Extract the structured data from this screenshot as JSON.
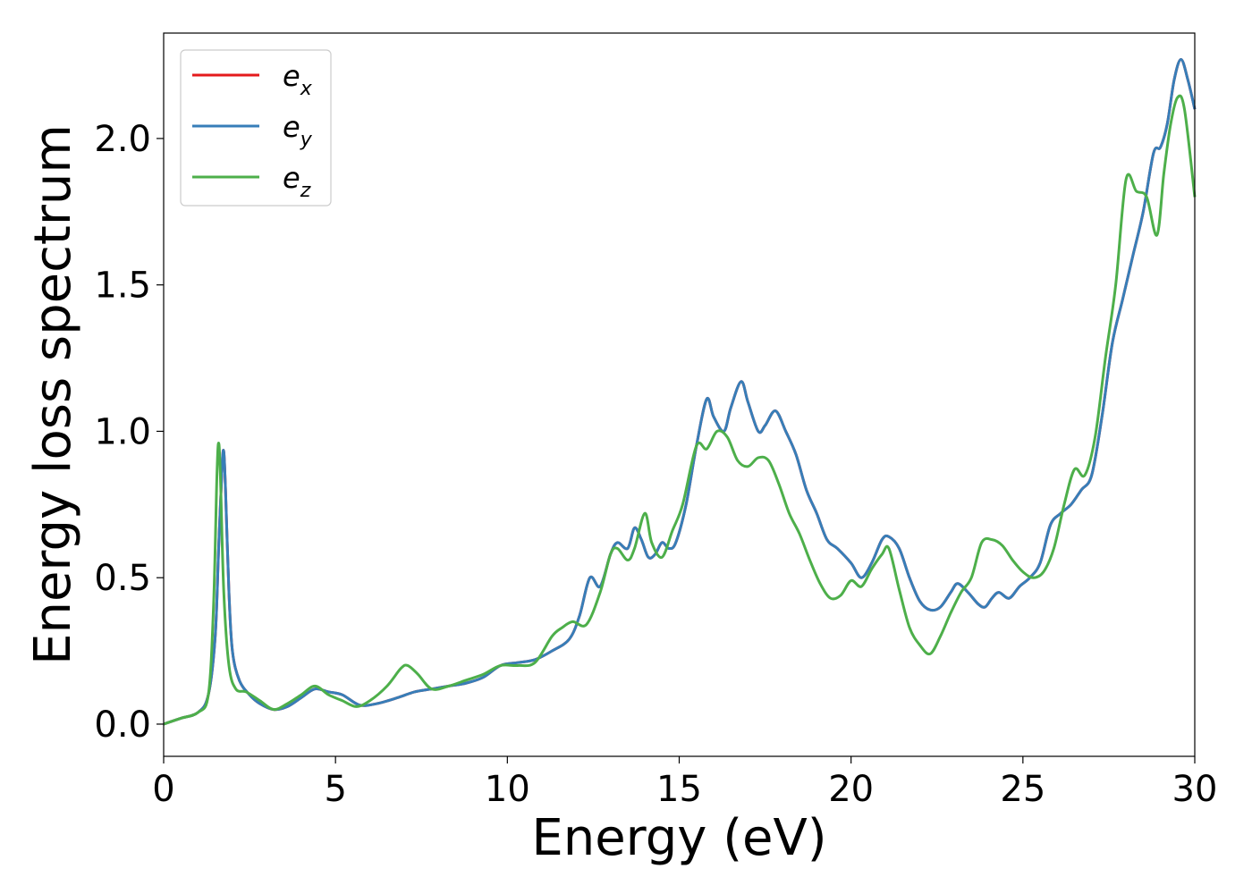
{
  "chart_data": {
    "type": "line",
    "xlabel": "Energy (eV)",
    "ylabel": "Energy loss spectrum",
    "xlim": [
      0,
      30
    ],
    "ylim": [
      -0.11,
      2.36
    ],
    "xticks": [
      "0",
      "5",
      "10",
      "15",
      "20",
      "25",
      "30"
    ],
    "yticks": [
      "0.0",
      "0.5",
      "1.0",
      "1.5",
      "2.0"
    ],
    "grid": false,
    "legend_position": "top-left",
    "series": [
      {
        "name": "e_x",
        "label_base": "e",
        "label_sub": "x",
        "color": "#e41a1c",
        "x": [
          0,
          0.5,
          1.0,
          1.3,
          1.5,
          1.6,
          1.7,
          1.75,
          1.8,
          1.9,
          2.0,
          2.2,
          2.5,
          2.8,
          3.2,
          3.6,
          4.0,
          4.4,
          4.8,
          5.2,
          5.7,
          6.2,
          6.8,
          7.3,
          7.8,
          8.3,
          8.8,
          9.3,
          9.8,
          10.3,
          10.8,
          11.3,
          11.8,
          12.1,
          12.4,
          12.7,
          13.0,
          13.2,
          13.5,
          13.7,
          13.9,
          14.1,
          14.3,
          14.5,
          14.7,
          14.9,
          15.2,
          15.5,
          15.8,
          16.0,
          16.3,
          16.5,
          16.8,
          17.0,
          17.3,
          17.5,
          17.8,
          18.1,
          18.4,
          18.7,
          19.0,
          19.3,
          19.6,
          20.0,
          20.3,
          20.6,
          20.9,
          21.1,
          21.4,
          21.7,
          22.0,
          22.3,
          22.6,
          22.9,
          23.1,
          23.4,
          23.7,
          23.9,
          24.1,
          24.3,
          24.6,
          24.9,
          25.2,
          25.5,
          25.8,
          26.1,
          26.4,
          26.7,
          27.0,
          27.3,
          27.6,
          27.9,
          28.2,
          28.5,
          28.8,
          29.0,
          29.2,
          29.4,
          29.6,
          29.8,
          30.0
        ],
        "y": [
          0.0,
          0.02,
          0.04,
          0.1,
          0.3,
          0.6,
          0.88,
          0.93,
          0.8,
          0.45,
          0.25,
          0.15,
          0.1,
          0.07,
          0.05,
          0.06,
          0.09,
          0.12,
          0.11,
          0.1,
          0.065,
          0.07,
          0.09,
          0.11,
          0.12,
          0.13,
          0.14,
          0.16,
          0.2,
          0.21,
          0.22,
          0.25,
          0.29,
          0.37,
          0.5,
          0.47,
          0.58,
          0.62,
          0.6,
          0.67,
          0.63,
          0.57,
          0.58,
          0.62,
          0.6,
          0.62,
          0.75,
          0.95,
          1.11,
          1.05,
          1.0,
          1.08,
          1.17,
          1.1,
          1.0,
          1.02,
          1.07,
          1.0,
          0.92,
          0.8,
          0.72,
          0.63,
          0.6,
          0.55,
          0.5,
          0.55,
          0.63,
          0.64,
          0.6,
          0.5,
          0.42,
          0.39,
          0.4,
          0.45,
          0.48,
          0.45,
          0.41,
          0.4,
          0.43,
          0.45,
          0.43,
          0.47,
          0.5,
          0.55,
          0.68,
          0.72,
          0.75,
          0.8,
          0.85,
          1.05,
          1.3,
          1.45,
          1.6,
          1.75,
          1.95,
          1.97,
          2.05,
          2.2,
          2.27,
          2.2,
          2.1
        ]
      },
      {
        "name": "e_y",
        "label_base": "e",
        "label_sub": "y",
        "color": "#377eb8",
        "x": [
          0,
          0.5,
          1.0,
          1.3,
          1.5,
          1.6,
          1.7,
          1.75,
          1.8,
          1.9,
          2.0,
          2.2,
          2.5,
          2.8,
          3.2,
          3.6,
          4.0,
          4.4,
          4.8,
          5.2,
          5.7,
          6.2,
          6.8,
          7.3,
          7.8,
          8.3,
          8.8,
          9.3,
          9.8,
          10.3,
          10.8,
          11.3,
          11.8,
          12.1,
          12.4,
          12.7,
          13.0,
          13.2,
          13.5,
          13.7,
          13.9,
          14.1,
          14.3,
          14.5,
          14.7,
          14.9,
          15.2,
          15.5,
          15.8,
          16.0,
          16.3,
          16.5,
          16.8,
          17.0,
          17.3,
          17.5,
          17.8,
          18.1,
          18.4,
          18.7,
          19.0,
          19.3,
          19.6,
          20.0,
          20.3,
          20.6,
          20.9,
          21.1,
          21.4,
          21.7,
          22.0,
          22.3,
          22.6,
          22.9,
          23.1,
          23.4,
          23.7,
          23.9,
          24.1,
          24.3,
          24.6,
          24.9,
          25.2,
          25.5,
          25.8,
          26.1,
          26.4,
          26.7,
          27.0,
          27.3,
          27.6,
          27.9,
          28.2,
          28.5,
          28.8,
          29.0,
          29.2,
          29.4,
          29.6,
          29.8,
          30.0
        ],
        "y": [
          0.0,
          0.02,
          0.04,
          0.1,
          0.3,
          0.6,
          0.88,
          0.93,
          0.8,
          0.45,
          0.25,
          0.15,
          0.1,
          0.07,
          0.05,
          0.06,
          0.09,
          0.12,
          0.11,
          0.1,
          0.065,
          0.07,
          0.09,
          0.11,
          0.12,
          0.13,
          0.14,
          0.16,
          0.2,
          0.21,
          0.22,
          0.25,
          0.29,
          0.37,
          0.5,
          0.47,
          0.58,
          0.62,
          0.6,
          0.67,
          0.63,
          0.57,
          0.58,
          0.62,
          0.6,
          0.62,
          0.75,
          0.95,
          1.11,
          1.05,
          1.0,
          1.08,
          1.17,
          1.1,
          1.0,
          1.02,
          1.07,
          1.0,
          0.92,
          0.8,
          0.72,
          0.63,
          0.6,
          0.55,
          0.5,
          0.55,
          0.63,
          0.64,
          0.6,
          0.5,
          0.42,
          0.39,
          0.4,
          0.45,
          0.48,
          0.45,
          0.41,
          0.4,
          0.43,
          0.45,
          0.43,
          0.47,
          0.5,
          0.55,
          0.68,
          0.72,
          0.75,
          0.8,
          0.85,
          1.05,
          1.3,
          1.45,
          1.6,
          1.75,
          1.95,
          1.97,
          2.05,
          2.2,
          2.27,
          2.2,
          2.1
        ]
      },
      {
        "name": "e_z",
        "label_base": "e",
        "label_sub": "z",
        "color": "#4daf4a",
        "x": [
          0,
          0.5,
          1.0,
          1.3,
          1.45,
          1.55,
          1.6,
          1.65,
          1.75,
          1.9,
          2.1,
          2.4,
          2.8,
          3.2,
          3.6,
          4.0,
          4.4,
          4.8,
          5.2,
          5.6,
          6.0,
          6.5,
          6.9,
          7.1,
          7.4,
          7.8,
          8.3,
          8.8,
          9.3,
          9.8,
          10.3,
          10.8,
          11.3,
          11.6,
          11.9,
          12.3,
          12.7,
          13.0,
          13.2,
          13.5,
          13.7,
          14.0,
          14.2,
          14.5,
          14.8,
          15.1,
          15.5,
          15.8,
          16.1,
          16.4,
          16.7,
          17.0,
          17.3,
          17.6,
          17.9,
          18.2,
          18.5,
          18.8,
          19.1,
          19.4,
          19.7,
          20.0,
          20.3,
          20.6,
          20.9,
          21.1,
          21.4,
          21.7,
          22.0,
          22.3,
          22.6,
          22.9,
          23.2,
          23.5,
          23.8,
          24.1,
          24.4,
          24.7,
          25.0,
          25.3,
          25.6,
          25.9,
          26.2,
          26.5,
          26.8,
          27.1,
          27.4,
          27.7,
          28.0,
          28.3,
          28.6,
          28.9,
          29.1,
          29.3,
          29.5,
          29.7,
          30.0
        ],
        "y": [
          0.0,
          0.02,
          0.04,
          0.1,
          0.4,
          0.85,
          0.96,
          0.85,
          0.45,
          0.2,
          0.12,
          0.11,
          0.08,
          0.05,
          0.07,
          0.1,
          0.13,
          0.1,
          0.08,
          0.06,
          0.08,
          0.13,
          0.19,
          0.2,
          0.17,
          0.12,
          0.13,
          0.15,
          0.17,
          0.2,
          0.2,
          0.21,
          0.3,
          0.33,
          0.35,
          0.34,
          0.45,
          0.58,
          0.6,
          0.56,
          0.6,
          0.72,
          0.62,
          0.57,
          0.66,
          0.75,
          0.95,
          0.94,
          1.0,
          0.98,
          0.9,
          0.88,
          0.91,
          0.9,
          0.82,
          0.72,
          0.65,
          0.56,
          0.48,
          0.43,
          0.44,
          0.49,
          0.47,
          0.53,
          0.58,
          0.6,
          0.46,
          0.33,
          0.27,
          0.24,
          0.3,
          0.38,
          0.45,
          0.5,
          0.62,
          0.63,
          0.61,
          0.56,
          0.52,
          0.5,
          0.52,
          0.6,
          0.75,
          0.87,
          0.85,
          0.98,
          1.25,
          1.5,
          1.86,
          1.82,
          1.8,
          1.67,
          1.88,
          2.05,
          2.14,
          2.1,
          1.8
        ]
      }
    ]
  }
}
